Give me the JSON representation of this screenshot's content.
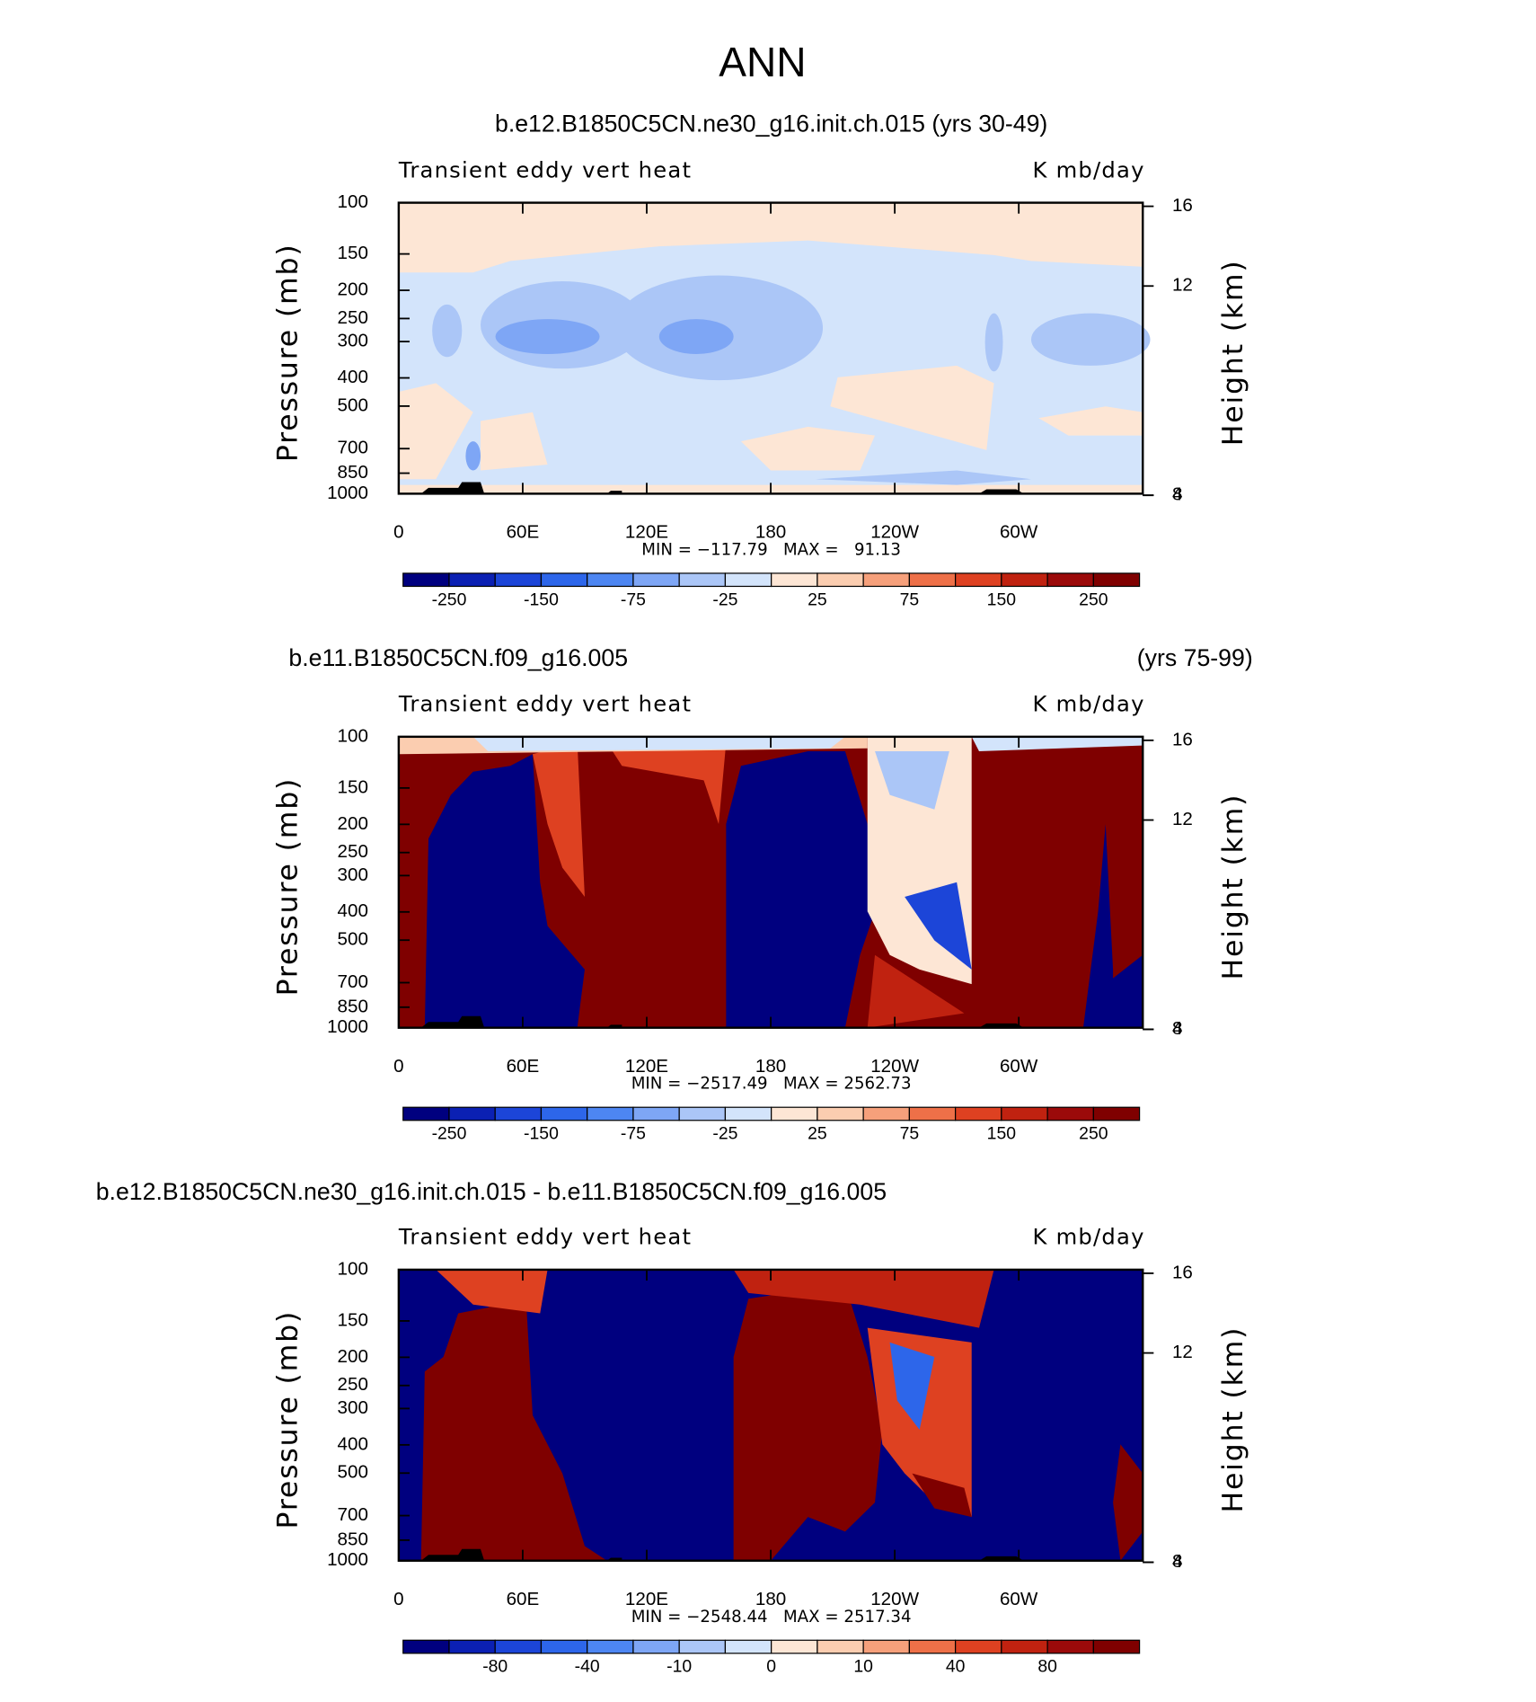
{
  "title": "ANN",
  "chart_data": [
    {
      "type": "contour",
      "title": "b.e12.B1850C5CN.ne30_g16.init.ch.015 (yrs 30-49)",
      "title_align": "center",
      "left_string": "Transient eddy vert heat",
      "right_string": "K mb/day",
      "y_label": "Pressure (mb)",
      "y2_label": "Height (km)",
      "y_log": true,
      "xlim": [
        0,
        360
      ],
      "xticks": [
        0,
        {
          "value": 60,
          "label": "60E"
        },
        {
          "value": 120,
          "label": "120E"
        },
        180,
        {
          "value": 240,
          "label": "120W"
        },
        {
          "value": 300,
          "label": "60W"
        }
      ],
      "ylim": [
        1000,
        100
      ],
      "yticks": [
        100,
        150,
        200,
        250,
        300,
        400,
        500,
        700,
        850,
        1000
      ],
      "y2ticks": [
        4,
        8,
        12,
        16
      ],
      "annotation": "MIN = −117.79   MAX =   91.13",
      "colorbar": {
        "colors": [
          "#00007f",
          "#0b20b3",
          "#1c45d8",
          "#2d66ea",
          "#4d86f2",
          "#7ea6f5",
          "#abc6f7",
          "#d3e4fb",
          "#fde6d5",
          "#fbcdb0",
          "#f6a07b",
          "#ee7048",
          "#de4121",
          "#c02210",
          "#9b0a0a",
          "#7f0000"
        ],
        "levels": [
          -250,
          null,
          -150,
          null,
          -75,
          null,
          -25,
          null,
          25,
          null,
          75,
          null,
          150,
          null,
          250
        ]
      }
    },
    {
      "type": "contour",
      "title": "b.e11.B1850C5CN.f09_g16.005",
      "title_right": "(yrs 75-99)",
      "title_align": "left",
      "left_string": "Transient eddy vert heat",
      "right_string": "K mb/day",
      "y_label": "Pressure (mb)",
      "y2_label": "Height (km)",
      "y_log": true,
      "xlim": [
        0,
        360
      ],
      "xticks": [
        0,
        {
          "value": 60,
          "label": "60E"
        },
        {
          "value": 120,
          "label": "120E"
        },
        180,
        {
          "value": 240,
          "label": "120W"
        },
        {
          "value": 300,
          "label": "60W"
        }
      ],
      "ylim": [
        1000,
        100
      ],
      "yticks": [
        100,
        150,
        200,
        250,
        300,
        400,
        500,
        700,
        850,
        1000
      ],
      "y2ticks": [
        4,
        8,
        12,
        16
      ],
      "annotation": "MIN = −2517.49   MAX = 2562.73",
      "colorbar": {
        "colors": [
          "#00007f",
          "#0b20b3",
          "#1c45d8",
          "#2d66ea",
          "#4d86f2",
          "#7ea6f5",
          "#abc6f7",
          "#d3e4fb",
          "#fde6d5",
          "#fbcdb0",
          "#f6a07b",
          "#ee7048",
          "#de4121",
          "#c02210",
          "#9b0a0a",
          "#7f0000"
        ],
        "levels": [
          -250,
          null,
          -150,
          null,
          -75,
          null,
          -25,
          null,
          25,
          null,
          75,
          null,
          150,
          null,
          250
        ]
      }
    },
    {
      "type": "contour",
      "title": "b.e12.B1850C5CN.ne30_g16.init.ch.015 - b.e11.B1850C5CN.f09_g16.005",
      "title_align": "left",
      "left_string": "Transient eddy vert heat",
      "right_string": "K mb/day",
      "y_label": "Pressure (mb)",
      "y2_label": "Height (km)",
      "y_log": true,
      "xlim": [
        0,
        360
      ],
      "xticks": [
        0,
        {
          "value": 60,
          "label": "60E"
        },
        {
          "value": 120,
          "label": "120E"
        },
        180,
        {
          "value": 240,
          "label": "120W"
        },
        {
          "value": 300,
          "label": "60W"
        }
      ],
      "ylim": [
        1000,
        100
      ],
      "yticks": [
        100,
        150,
        200,
        250,
        300,
        400,
        500,
        700,
        850,
        1000
      ],
      "y2ticks": [
        4,
        8,
        12,
        16
      ],
      "annotation": "MIN = −2548.44   MAX = 2517.34",
      "colorbar": {
        "colors": [
          "#00007f",
          "#0b20b3",
          "#1c45d8",
          "#2d66ea",
          "#4d86f2",
          "#7ea6f5",
          "#abc6f7",
          "#d3e4fb",
          "#fde6d5",
          "#fbcdb0",
          "#f6a07b",
          "#ee7048",
          "#de4121",
          "#c02210",
          "#9b0a0a",
          "#7f0000"
        ],
        "levels": [
          null,
          -80,
          null,
          -40,
          null,
          -10,
          null,
          0,
          null,
          10,
          null,
          40,
          null,
          80,
          null
        ]
      }
    }
  ]
}
